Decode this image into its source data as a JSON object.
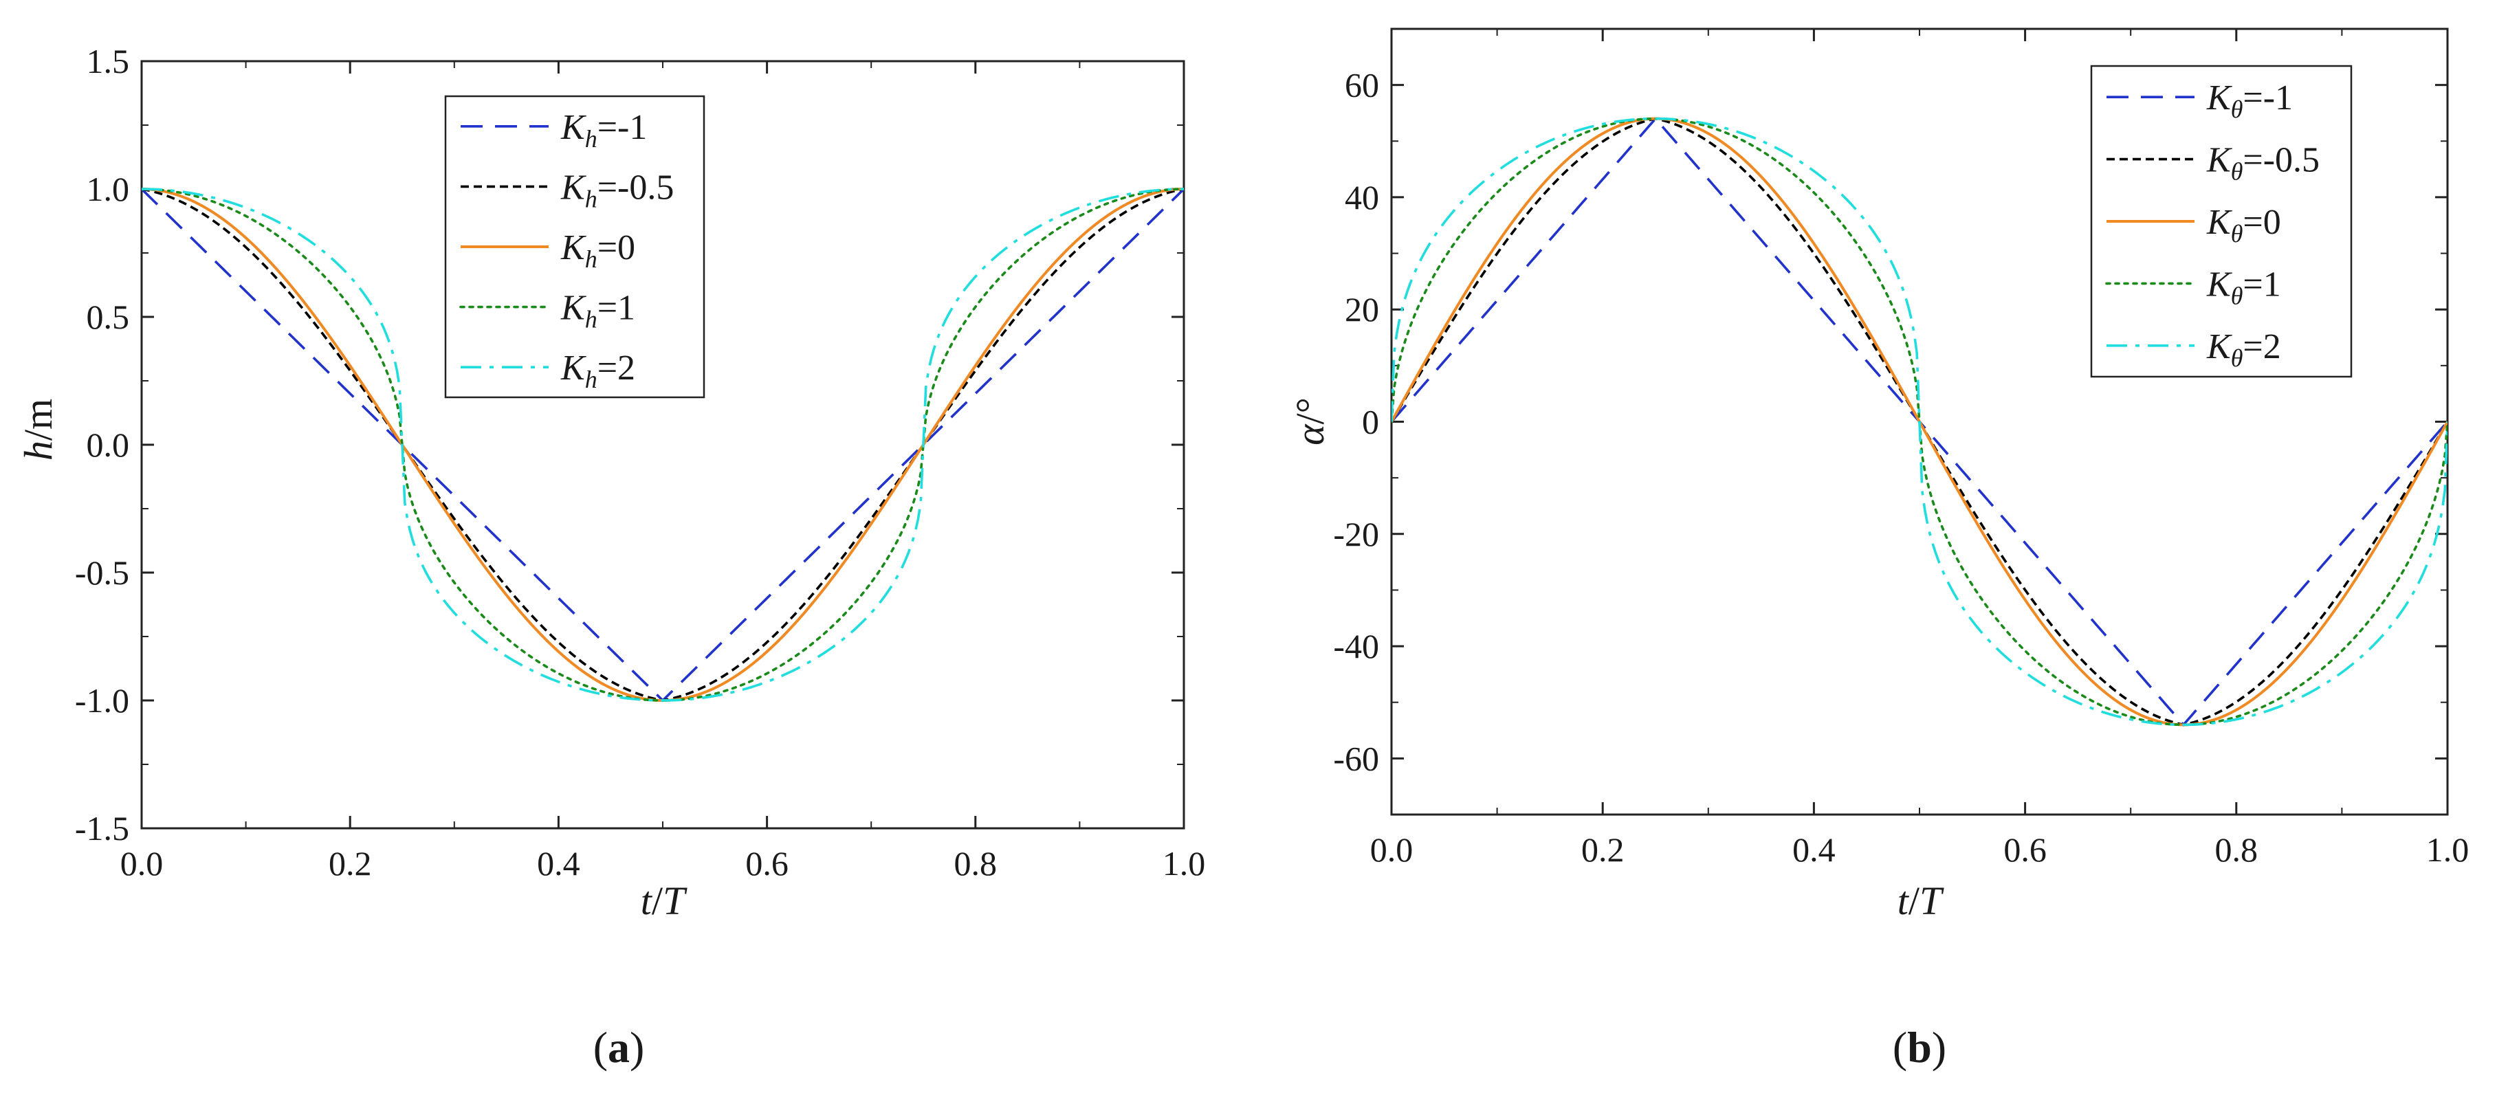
{
  "figure": {
    "panel_labels": [
      {
        "open": "(",
        "letter": "a",
        "close": ")"
      },
      {
        "open": "(",
        "letter": "b",
        "close": ")"
      }
    ]
  },
  "chart_data": [
    {
      "type": "line",
      "panel": "a",
      "title": "",
      "xlabel": {
        "parts": [
          "t",
          "/",
          "T"
        ],
        "italic": [
          true,
          false,
          true
        ]
      },
      "ylabel": {
        "parts": [
          "h",
          "/m"
        ],
        "italic": [
          true,
          false
        ]
      },
      "xlim": [
        0.0,
        1.0
      ],
      "ylim": [
        -1.5,
        1.5
      ],
      "xticks": [
        0.0,
        0.2,
        0.4,
        0.6,
        0.8,
        1.0
      ],
      "xtick_labels": [
        "0.0",
        "0.2",
        "0.4",
        "0.6",
        "0.8",
        "1.0"
      ],
      "yticks": [
        -1.5,
        -1.0,
        -0.5,
        0.0,
        0.5,
        1.0,
        1.5
      ],
      "ytick_labels": [
        "-1.5",
        "-1.0",
        "-0.5",
        "0.0",
        "0.5",
        "1.0",
        "1.5"
      ],
      "grid": false,
      "legend_position": "top-center",
      "function": "h(t) = f_K(sin(2*pi*(t/T) + phase)), amplitude 1 m",
      "phase_shift": 0.25,
      "amplitude": 1.0,
      "series": [
        {
          "name": "K_h=-1",
          "symbol": "K",
          "subscript": "h",
          "value_text": "=-1",
          "K": -1,
          "color": "#2233cc",
          "style": "dashed"
        },
        {
          "name": "K_h=-0.5",
          "symbol": "K",
          "subscript": "h",
          "value_text": "=-0.5",
          "K": -0.5,
          "color": "#000000",
          "style": "short-dashed"
        },
        {
          "name": "K_h=0",
          "symbol": "K",
          "subscript": "h",
          "value_text": "=0",
          "K": 0,
          "color": "#f08a24",
          "style": "solid"
        },
        {
          "name": "K_h=1",
          "symbol": "K",
          "subscript": "h",
          "value_text": "=1",
          "K": 1,
          "color": "#1a8a1a",
          "style": "dotted"
        },
        {
          "name": "K_h=2",
          "symbol": "K",
          "subscript": "h",
          "value_text": "=2",
          "K": 2,
          "color": "#22dddd",
          "style": "dash-dot"
        }
      ]
    },
    {
      "type": "line",
      "panel": "b",
      "title": "",
      "xlabel": {
        "parts": [
          "t",
          "/",
          "T"
        ],
        "italic": [
          true,
          false,
          true
        ]
      },
      "ylabel": {
        "parts": [
          "α",
          "/°"
        ],
        "italic": [
          true,
          false
        ]
      },
      "xlim": [
        0.0,
        1.0
      ],
      "ylim": [
        -70,
        70
      ],
      "xticks": [
        0.0,
        0.2,
        0.4,
        0.6,
        0.8,
        1.0
      ],
      "xtick_labels": [
        "0.0",
        "0.2",
        "0.4",
        "0.6",
        "0.8",
        "1.0"
      ],
      "yticks": [
        -60,
        -40,
        -20,
        0,
        20,
        40,
        60
      ],
      "ytick_labels": [
        "-60",
        "-40",
        "-20",
        "0",
        "20",
        "40",
        "60"
      ],
      "grid": false,
      "legend_position": "top-right",
      "function": "alpha(t) = 54 * f_K(sin(2*pi*(t/T)))",
      "phase_shift": 0.0,
      "amplitude": 54,
      "series": [
        {
          "name": "K_θ=-1",
          "symbol": "K",
          "subscript": "θ",
          "value_text": "=-1",
          "K": -1,
          "color": "#2233cc",
          "style": "dashed"
        },
        {
          "name": "K_θ=-0.5",
          "symbol": "K",
          "subscript": "θ",
          "value_text": "=-0.5",
          "K": -0.5,
          "color": "#000000",
          "style": "short-dashed"
        },
        {
          "name": "K_θ=0",
          "symbol": "K",
          "subscript": "θ",
          "value_text": "=0",
          "K": 0,
          "color": "#f08a24",
          "style": "solid"
        },
        {
          "name": "K_θ=1",
          "symbol": "K",
          "subscript": "θ",
          "value_text": "=1",
          "K": 1,
          "color": "#1a8a1a",
          "style": "dotted"
        },
        {
          "name": "K_θ=2",
          "symbol": "K",
          "subscript": "θ",
          "value_text": "=2",
          "K": 2,
          "color": "#22dddd",
          "style": "dash-dot"
        }
      ]
    }
  ]
}
